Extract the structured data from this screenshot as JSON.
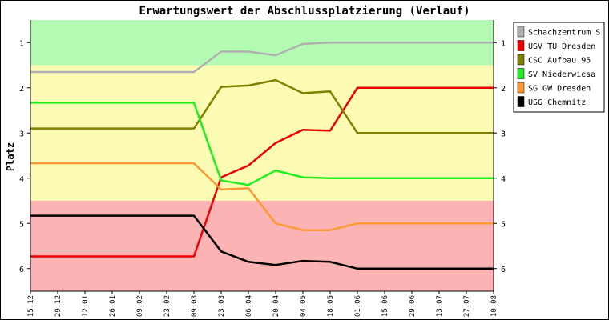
{
  "chart_data": {
    "type": "line",
    "title": "Erwartungswert der Abschlussplatzierung (Verlauf)",
    "ylabel": "Platz",
    "xlabel": "",
    "ylim": [
      6.5,
      0.5
    ],
    "y_ticks": [
      1,
      2,
      3,
      4,
      5,
      6
    ],
    "y_tick_labels": [
      "1",
      "2",
      "3",
      "4",
      "5",
      "6"
    ],
    "x": [
      "15.12",
      "29.12",
      "12.01",
      "26.01",
      "09.02",
      "23.02",
      "09.03",
      "23.03",
      "06.04",
      "20.04",
      "04.05",
      "18.05",
      "01.06",
      "15.06",
      "29.06",
      "13.07",
      "27.07",
      "10.08"
    ],
    "grid": false,
    "legend": "right",
    "zones": [
      {
        "from": 0.5,
        "to": 1.5,
        "color": "#b3fbb3"
      },
      {
        "from": 1.5,
        "to": 4.5,
        "color": "#fbfbb3"
      },
      {
        "from": 4.5,
        "to": 6.5,
        "color": "#fbb3b3"
      }
    ],
    "series": [
      {
        "name": "Schachzentrum S",
        "color": "#b0b0b0",
        "values": [
          1.65,
          1.65,
          1.65,
          1.65,
          1.65,
          1.65,
          1.65,
          1.2,
          1.2,
          1.28,
          1.03,
          1.0,
          1.0,
          1.0,
          1.0,
          1.0,
          1.0,
          1.0
        ]
      },
      {
        "name": "USV TU Dresden",
        "color": "#ee0000",
        "values": [
          5.73,
          5.73,
          5.73,
          5.73,
          5.73,
          5.73,
          5.73,
          3.98,
          3.72,
          3.22,
          2.93,
          2.95,
          2.0,
          2.0,
          2.0,
          2.0,
          2.0,
          2.0
        ]
      },
      {
        "name": "CSC Aufbau 95",
        "color": "#808000",
        "values": [
          2.9,
          2.9,
          2.9,
          2.9,
          2.9,
          2.9,
          2.9,
          1.98,
          1.95,
          1.83,
          2.12,
          2.08,
          3.0,
          3.0,
          3.0,
          3.0,
          3.0,
          3.0
        ]
      },
      {
        "name": "SV Niederwiesa",
        "color": "#22ee22",
        "values": [
          2.33,
          2.33,
          2.33,
          2.33,
          2.33,
          2.33,
          2.33,
          4.05,
          4.15,
          3.83,
          3.98,
          4.0,
          4.0,
          4.0,
          4.0,
          4.0,
          4.0,
          4.0
        ]
      },
      {
        "name": "SG GW Dresden",
        "color": "#ff9933",
        "values": [
          3.67,
          3.67,
          3.67,
          3.67,
          3.67,
          3.67,
          3.67,
          4.25,
          4.22,
          5.0,
          5.15,
          5.15,
          5.0,
          5.0,
          5.0,
          5.0,
          5.0,
          5.0
        ]
      },
      {
        "name": "USG Chemnitz",
        "color": "#000000",
        "values": [
          4.83,
          4.83,
          4.83,
          4.83,
          4.83,
          4.83,
          4.83,
          5.62,
          5.85,
          5.92,
          5.83,
          5.85,
          6.0,
          6.0,
          6.0,
          6.0,
          6.0,
          6.0
        ]
      }
    ]
  }
}
